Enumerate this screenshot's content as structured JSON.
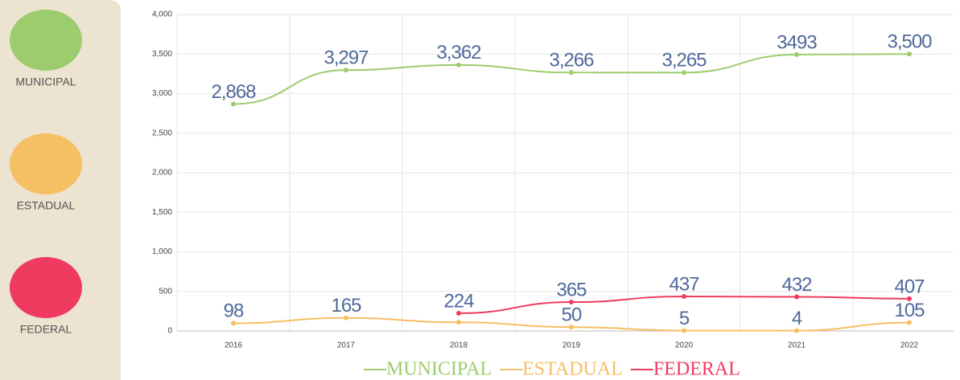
{
  "chart_data": {
    "type": "line",
    "categories": [
      "2016",
      "2017",
      "2018",
      "2019",
      "2020",
      "2021",
      "2022"
    ],
    "series": [
      {
        "name": "MUNICIPAL",
        "color": "#9ccc6e",
        "values": [
          2868,
          3297,
          3362,
          3266,
          3265,
          3493,
          3500
        ],
        "value_labels": [
          "2,868",
          "3,297",
          "3,362",
          "3,266",
          "3,265",
          "3493",
          "3,500"
        ]
      },
      {
        "name": "ESTADUAL",
        "color": "#f5bf63",
        "values": [
          98,
          165,
          110,
          50,
          5,
          4,
          105
        ],
        "value_labels": [
          "98",
          "165",
          null,
          "50",
          "5",
          "4",
          "105"
        ]
      },
      {
        "name": "FEDERAL",
        "color": "#ef3b5f",
        "values": [
          null,
          null,
          224,
          365,
          437,
          432,
          407
        ]
      }
    ],
    "ylim": [
      0,
      4000
    ],
    "yticks": [
      0,
      500,
      {
        "value": 1000,
        "label": "1,000"
      },
      {
        "value": 1500,
        "label": "1,500"
      },
      {
        "value": 2000,
        "label": "2,000"
      },
      {
        "value": 2500,
        "label": "2,500"
      },
      {
        "value": 3000,
        "label": "3,000"
      },
      {
        "value": 3500,
        "label": "3,500"
      },
      {
        "value": 4000,
        "label": "4,000"
      }
    ],
    "grid": true,
    "legend": "bottom"
  }
}
